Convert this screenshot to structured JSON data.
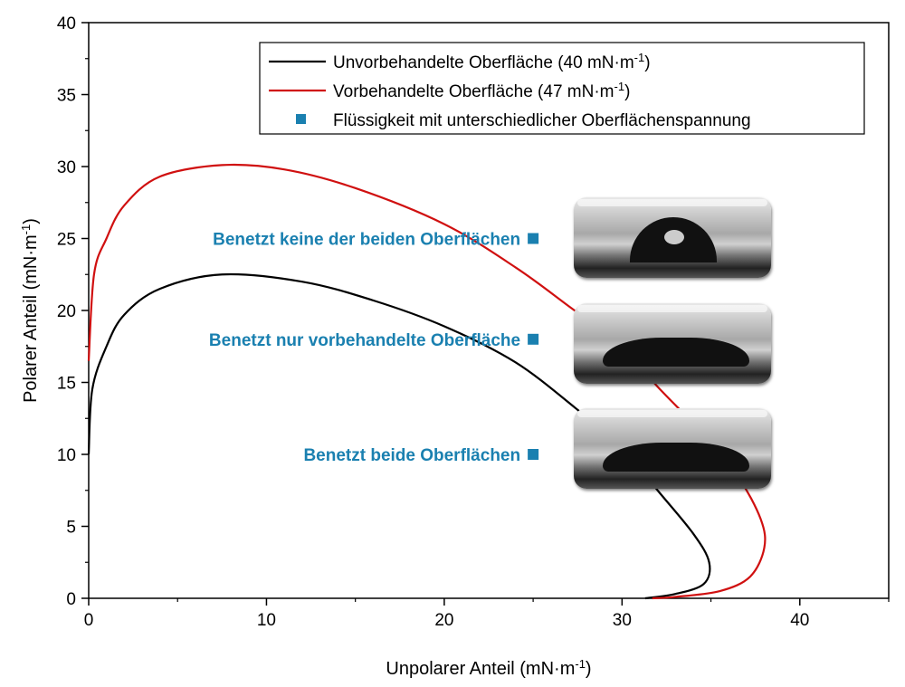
{
  "chart_data": {
    "type": "line",
    "xlabel": "Unpolarer Anteil (mN·m",
    "xlabel_sup": "-1",
    "xlabel_end": ")",
    "ylabel": "Polarer Anteil (mN·m",
    "ylabel_sup": "-1",
    "ylabel_end": ")",
    "xlim": [
      0,
      45
    ],
    "ylim": [
      0,
      40
    ],
    "xticks": [
      "0",
      "10",
      "20",
      "30",
      "40"
    ],
    "yticks": [
      "0",
      "5",
      "10",
      "15",
      "20",
      "25",
      "30",
      "35",
      "40"
    ],
    "grid": false,
    "legend_position": "top-right",
    "series": [
      {
        "name": "Unvorbehandelte Oberfläche (40 mN·m",
        "name_sup": "-1",
        "name_end": ")",
        "color": "#000000",
        "x": [
          0,
          0.2,
          1,
          2,
          4,
          7.5,
          12,
          16,
          20,
          24,
          27.5,
          30,
          32,
          34,
          34.9,
          34.6,
          33,
          31.3
        ],
        "y": [
          10,
          14.5,
          17.5,
          19.7,
          21.5,
          22.5,
          22,
          20.7,
          18.9,
          16.4,
          13.1,
          10.5,
          7.5,
          4.5,
          2.5,
          1,
          0.3,
          0
        ]
      },
      {
        "name": "Vorbehandelte Oberfläche (47 mN·m",
        "name_sup": "-1",
        "name_end": ")",
        "color": "#d01010",
        "x": [
          0,
          0.3,
          1,
          2,
          4,
          7.5,
          11,
          15,
          20,
          24,
          27,
          30,
          32,
          34.5,
          36.5,
          37.8,
          38,
          37.2,
          35.5,
          33,
          31.7
        ],
        "y": [
          16.5,
          22.5,
          25,
          27.3,
          29.3,
          30.1,
          29.8,
          28.5,
          26,
          23,
          20.3,
          17.5,
          14.7,
          11.5,
          8.5,
          5.5,
          3.5,
          1.5,
          0.5,
          0.1,
          0
        ]
      },
      {
        "name": "Flüssigkeit mit unterschiedlicher Oberflächenspannung",
        "color": "#1a80b0",
        "marker": "square",
        "x": [
          25,
          25,
          25
        ],
        "y": [
          25,
          18,
          10
        ],
        "labels": [
          "Benetzt keine der beiden Oberflächen",
          "Benetzt nur vorbehandelte Oberfläche",
          "Benetzt beide Oberflächen"
        ]
      }
    ]
  }
}
